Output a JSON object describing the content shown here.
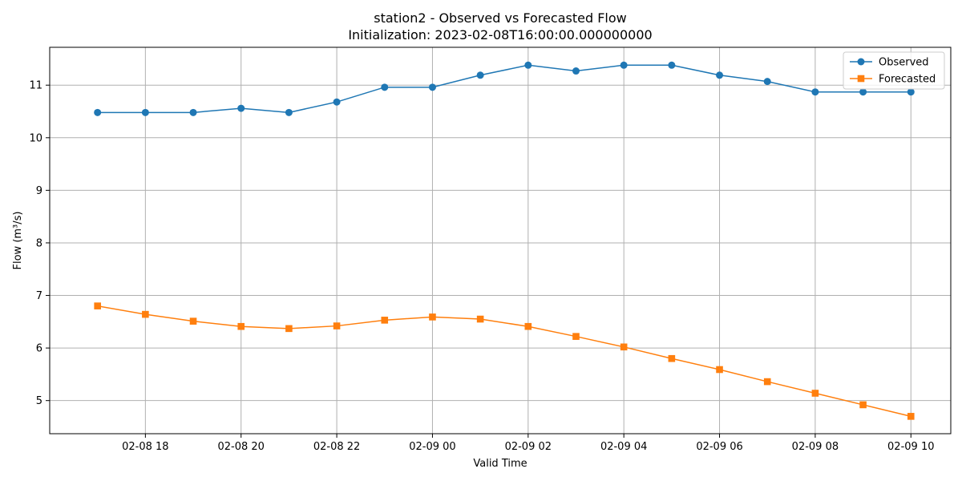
{
  "chart_data": {
    "type": "line",
    "title": "station2 - Observed vs Forecasted Flow",
    "subtitle": "Initialization: 2023-02-08T16:00:00.000000000",
    "xlabel": "Valid Time",
    "ylabel": "Flow (m³/s)",
    "x": [
      "2023-02-08 17:00",
      "2023-02-08 18:00",
      "2023-02-08 19:00",
      "2023-02-08 20:00",
      "2023-02-08 21:00",
      "2023-02-08 22:00",
      "2023-02-08 23:00",
      "2023-02-09 00:00",
      "2023-02-09 01:00",
      "2023-02-09 02:00",
      "2023-02-09 03:00",
      "2023-02-09 04:00",
      "2023-02-09 05:00",
      "2023-02-09 06:00",
      "2023-02-09 07:00",
      "2023-02-09 08:00",
      "2023-02-09 09:00",
      "2023-02-09 10:00"
    ],
    "xticks": [
      {
        "at": "2023-02-08 18:00",
        "label": "02-08 18"
      },
      {
        "at": "2023-02-08 20:00",
        "label": "02-08 20"
      },
      {
        "at": "2023-02-08 22:00",
        "label": "02-08 22"
      },
      {
        "at": "2023-02-09 00:00",
        "label": "02-09 00"
      },
      {
        "at": "2023-02-09 02:00",
        "label": "02-09 02"
      },
      {
        "at": "2023-02-09 04:00",
        "label": "02-09 04"
      },
      {
        "at": "2023-02-09 06:00",
        "label": "02-09 06"
      },
      {
        "at": "2023-02-09 08:00",
        "label": "02-09 08"
      },
      {
        "at": "2023-02-09 10:00",
        "label": "02-09 10"
      }
    ],
    "yticks": [
      5,
      6,
      7,
      8,
      9,
      10,
      11
    ],
    "ylim": [
      4.37,
      11.72
    ],
    "xlim": [
      "2023-02-08 16:00",
      "2023-02-09 10:50"
    ],
    "grid": true,
    "legend": "top-right",
    "series": [
      {
        "name": "Observed",
        "color": "#1f77b4",
        "marker": "circle",
        "values": [
          10.48,
          10.48,
          10.48,
          10.56,
          10.48,
          10.68,
          10.96,
          10.96,
          11.19,
          11.38,
          11.27,
          11.38,
          11.38,
          11.19,
          11.07,
          10.87,
          10.87,
          10.87
        ]
      },
      {
        "name": "Forecasted",
        "color": "#ff7f0e",
        "marker": "square",
        "values": [
          6.8,
          6.64,
          6.51,
          6.41,
          6.37,
          6.42,
          6.53,
          6.59,
          6.55,
          6.41,
          6.22,
          6.02,
          5.8,
          5.59,
          5.36,
          5.14,
          4.92,
          4.7
        ]
      }
    ]
  }
}
